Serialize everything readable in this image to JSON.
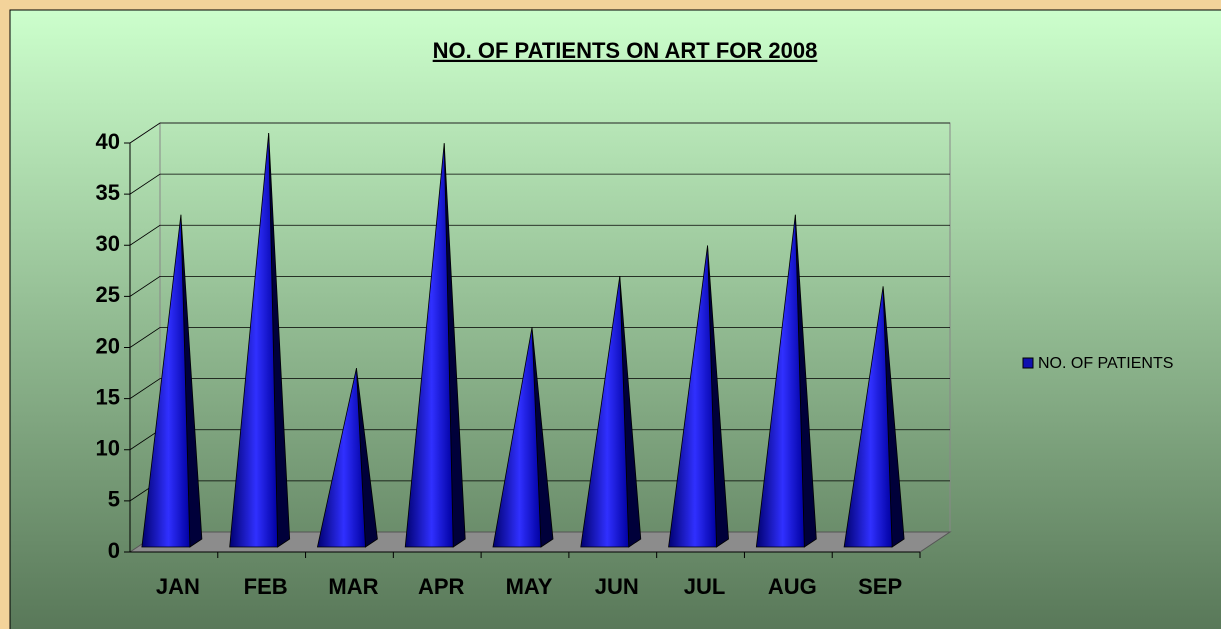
{
  "chart_data": {
    "type": "bar3d-pyramid",
    "title": "NO. OF PATIENTS ON ART FOR 2008",
    "categories": [
      "JAN",
      "FEB",
      "MAR",
      "APR",
      "MAY",
      "JUN",
      "JUL",
      "AUG",
      "SEP"
    ],
    "series": [
      {
        "name": "NO. OF PATIENTS",
        "color": "#1010b0",
        "values": [
          32,
          40,
          17,
          39,
          21,
          26,
          29,
          32,
          25
        ]
      }
    ],
    "ylim": [
      0,
      40
    ],
    "yticks": [
      0,
      5,
      10,
      15,
      20,
      25,
      30,
      35,
      40
    ],
    "grid": true,
    "legend": "right"
  }
}
